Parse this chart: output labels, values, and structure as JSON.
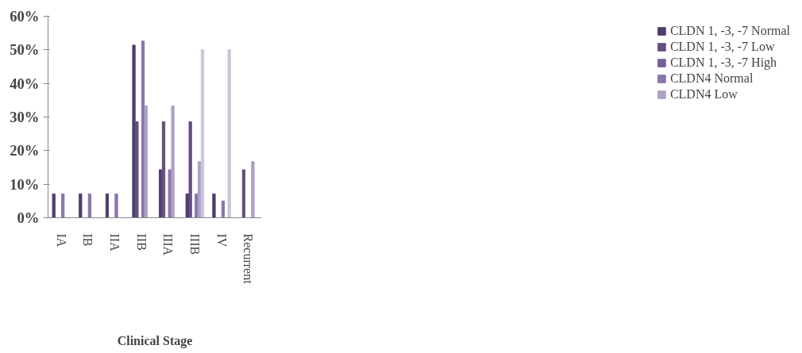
{
  "chart_data": {
    "type": "bar",
    "xlabel": "Clinical Stage",
    "categories": [
      "IA",
      "IB",
      "IIA",
      "IIB",
      "IIIA",
      "IIIB",
      "IV",
      "Recurrent"
    ],
    "series": [
      {
        "name": "CLDN 1, -3, -7 Normal",
        "color": "#4f3d6b",
        "values": [
          7.1,
          7.1,
          7.1,
          51.4,
          14.3,
          7.1,
          7.1,
          0
        ]
      },
      {
        "name": "CLDN 1, -3, -7 Low",
        "color": "#634f84",
        "values": [
          0,
          0,
          0,
          28.6,
          28.6,
          28.6,
          0,
          14.3
        ]
      },
      {
        "name": "CLDN 1, -3, -7 High",
        "color": "#765e9c",
        "values": [
          0,
          0,
          0,
          0,
          0,
          0,
          0,
          0
        ]
      },
      {
        "name": "CLDN4 Normal",
        "color": "#8a74ad",
        "values": [
          7.1,
          7.1,
          7.1,
          52.6,
          14.3,
          7.1,
          5,
          0
        ]
      },
      {
        "name": "CLDN4 Low",
        "color": "#aea1c4",
        "values": [
          0,
          0,
          0,
          33.3,
          33.3,
          16.7,
          0,
          16.7
        ]
      },
      {
        "color": "#cbc4dd",
        "values": [
          0,
          0,
          0,
          0,
          0,
          50,
          50,
          0
        ]
      }
    ],
    "ylim": [
      0,
      60
    ],
    "yticks": [
      {
        "value": 0,
        "label": "0%"
      },
      {
        "value": 10,
        "label": "10%"
      },
      {
        "value": 20,
        "label": "20%"
      },
      {
        "value": 30,
        "label": "30%"
      },
      {
        "value": 40,
        "label": "40%"
      },
      {
        "value": 50,
        "label": "50%"
      },
      {
        "value": 60,
        "label": "60%"
      }
    ],
    "grid": false,
    "legend": "right"
  }
}
